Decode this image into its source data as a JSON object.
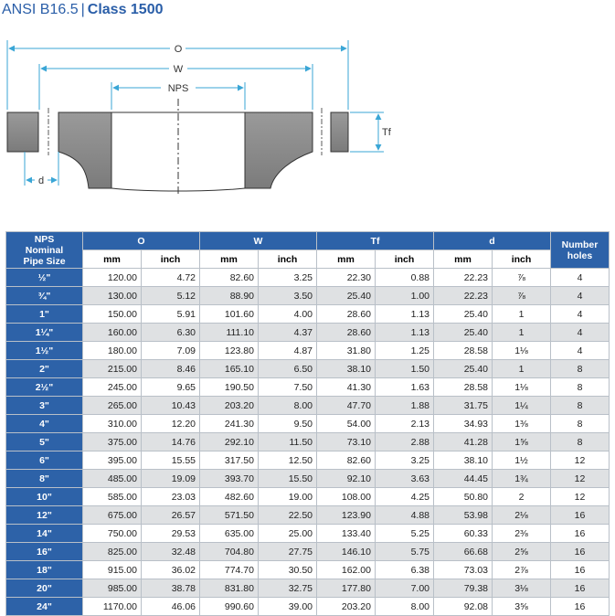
{
  "title": {
    "standard": "ANSI B16.5",
    "separator": "|",
    "class_label": "Class 1500"
  },
  "drawing": {
    "o_label": "O",
    "w_label": "W",
    "nps_label": "NPS",
    "tf_label": "Tf",
    "d_label": "d"
  },
  "table": {
    "headers": {
      "nps": "NPS",
      "nps_sub": "Nominal",
      "nps_sub2": "Pipe Size",
      "o": "O",
      "w": "W",
      "tf": "Tf",
      "d": "d",
      "holes": "Number",
      "holes_sub": "holes",
      "mm": "mm",
      "inch": "inch"
    },
    "rows": [
      {
        "nps": "½\"",
        "o_mm": "120.00",
        "o_in": "4.72",
        "w_mm": "82.60",
        "w_in": "3.25",
        "tf_mm": "22.30",
        "tf_in": "0.88",
        "d_mm": "22.23",
        "d_in": "⅞",
        "holes": "4"
      },
      {
        "nps": "¾\"",
        "o_mm": "130.00",
        "o_in": "5.12",
        "w_mm": "88.90",
        "w_in": "3.50",
        "tf_mm": "25.40",
        "tf_in": "1.00",
        "d_mm": "22.23",
        "d_in": "⅞",
        "holes": "4"
      },
      {
        "nps": "1\"",
        "o_mm": "150.00",
        "o_in": "5.91",
        "w_mm": "101.60",
        "w_in": "4.00",
        "tf_mm": "28.60",
        "tf_in": "1.13",
        "d_mm": "25.40",
        "d_in": "1",
        "holes": "4"
      },
      {
        "nps": "1¼\"",
        "o_mm": "160.00",
        "o_in": "6.30",
        "w_mm": "111.10",
        "w_in": "4.37",
        "tf_mm": "28.60",
        "tf_in": "1.13",
        "d_mm": "25.40",
        "d_in": "1",
        "holes": "4"
      },
      {
        "nps": "1½\"",
        "o_mm": "180.00",
        "o_in": "7.09",
        "w_mm": "123.80",
        "w_in": "4.87",
        "tf_mm": "31.80",
        "tf_in": "1.25",
        "d_mm": "28.58",
        "d_in": "1⅛",
        "holes": "4"
      },
      {
        "nps": "2\"",
        "o_mm": "215.00",
        "o_in": "8.46",
        "w_mm": "165.10",
        "w_in": "6.50",
        "tf_mm": "38.10",
        "tf_in": "1.50",
        "d_mm": "25.40",
        "d_in": "1",
        "holes": "8"
      },
      {
        "nps": "2½\"",
        "o_mm": "245.00",
        "o_in": "9.65",
        "w_mm": "190.50",
        "w_in": "7.50",
        "tf_mm": "41.30",
        "tf_in": "1.63",
        "d_mm": "28.58",
        "d_in": "1⅛",
        "holes": "8"
      },
      {
        "nps": "3\"",
        "o_mm": "265.00",
        "o_in": "10.43",
        "w_mm": "203.20",
        "w_in": "8.00",
        "tf_mm": "47.70",
        "tf_in": "1.88",
        "d_mm": "31.75",
        "d_in": "1¼",
        "holes": "8"
      },
      {
        "nps": "4\"",
        "o_mm": "310.00",
        "o_in": "12.20",
        "w_mm": "241.30",
        "w_in": "9.50",
        "tf_mm": "54.00",
        "tf_in": "2.13",
        "d_mm": "34.93",
        "d_in": "1⅜",
        "holes": "8"
      },
      {
        "nps": "5\"",
        "o_mm": "375.00",
        "o_in": "14.76",
        "w_mm": "292.10",
        "w_in": "11.50",
        "tf_mm": "73.10",
        "tf_in": "2.88",
        "d_mm": "41.28",
        "d_in": "1⅝",
        "holes": "8"
      },
      {
        "nps": "6\"",
        "o_mm": "395.00",
        "o_in": "15.55",
        "w_mm": "317.50",
        "w_in": "12.50",
        "tf_mm": "82.60",
        "tf_in": "3.25",
        "d_mm": "38.10",
        "d_in": "1½",
        "holes": "12"
      },
      {
        "nps": "8\"",
        "o_mm": "485.00",
        "o_in": "19.09",
        "w_mm": "393.70",
        "w_in": "15.50",
        "tf_mm": "92.10",
        "tf_in": "3.63",
        "d_mm": "44.45",
        "d_in": "1¾",
        "holes": "12"
      },
      {
        "nps": "10\"",
        "o_mm": "585.00",
        "o_in": "23.03",
        "w_mm": "482.60",
        "w_in": "19.00",
        "tf_mm": "108.00",
        "tf_in": "4.25",
        "d_mm": "50.80",
        "d_in": "2",
        "holes": "12"
      },
      {
        "nps": "12\"",
        "o_mm": "675.00",
        "o_in": "26.57",
        "w_mm": "571.50",
        "w_in": "22.50",
        "tf_mm": "123.90",
        "tf_in": "4.88",
        "d_mm": "53.98",
        "d_in": "2⅛",
        "holes": "16"
      },
      {
        "nps": "14\"",
        "o_mm": "750.00",
        "o_in": "29.53",
        "w_mm": "635.00",
        "w_in": "25.00",
        "tf_mm": "133.40",
        "tf_in": "5.25",
        "d_mm": "60.33",
        "d_in": "2⅜",
        "holes": "16"
      },
      {
        "nps": "16\"",
        "o_mm": "825.00",
        "o_in": "32.48",
        "w_mm": "704.80",
        "w_in": "27.75",
        "tf_mm": "146.10",
        "tf_in": "5.75",
        "d_mm": "66.68",
        "d_in": "2⅝",
        "holes": "16"
      },
      {
        "nps": "18\"",
        "o_mm": "915.00",
        "o_in": "36.02",
        "w_mm": "774.70",
        "w_in": "30.50",
        "tf_mm": "162.00",
        "tf_in": "6.38",
        "d_mm": "73.03",
        "d_in": "2⅞",
        "holes": "16"
      },
      {
        "nps": "20\"",
        "o_mm": "985.00",
        "o_in": "38.78",
        "w_mm": "831.80",
        "w_in": "32.75",
        "tf_mm": "177.80",
        "tf_in": "7.00",
        "d_mm": "79.38",
        "d_in": "3⅛",
        "holes": "16"
      },
      {
        "nps": "24\"",
        "o_mm": "1170.00",
        "o_in": "46.06",
        "w_mm": "990.60",
        "w_in": "39.00",
        "tf_mm": "203.20",
        "tf_in": "8.00",
        "d_mm": "92.08",
        "d_in": "3⅝",
        "holes": "16"
      }
    ]
  },
  "colors": {
    "header_blue": "#2d62a8",
    "title_blue": "#2a5ea8",
    "dim_cyan": "#3aa6d6",
    "row_gray": "#dfe1e3",
    "flange_gray": "#8c8c8c"
  }
}
